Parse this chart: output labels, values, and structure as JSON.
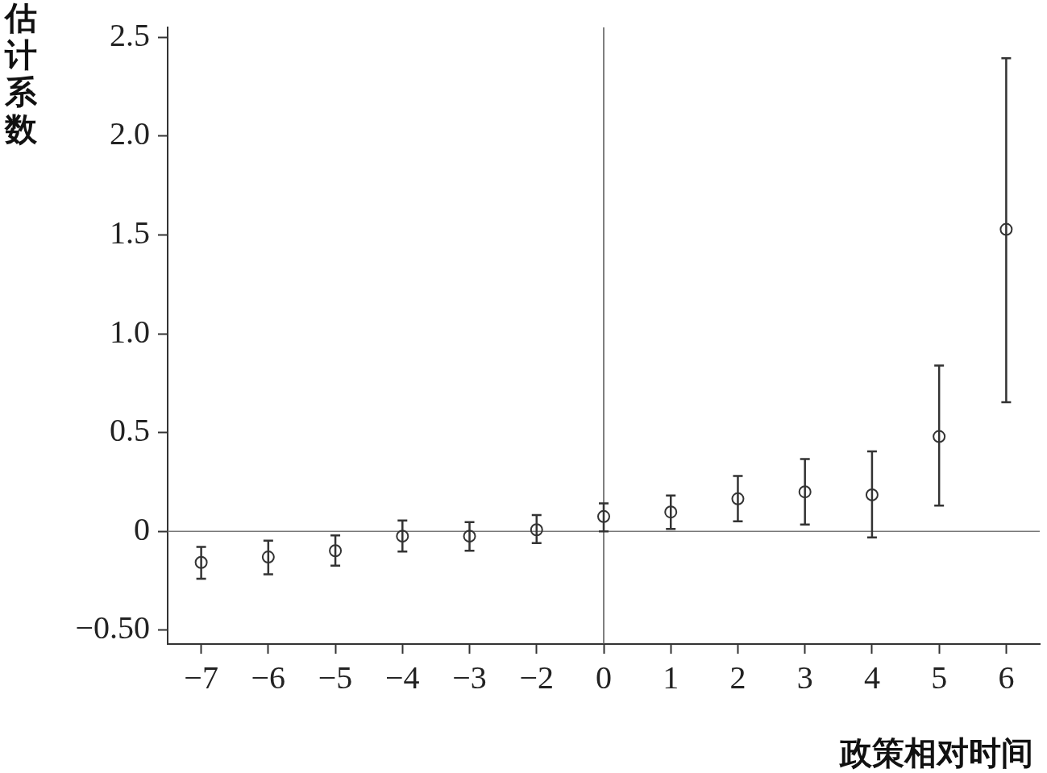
{
  "chart_data": {
    "type": "scatter",
    "xlabel": "政策相对时间",
    "ylabel": "估计系数",
    "categories": [
      "−7",
      "−6",
      "−5",
      "−4",
      "−3",
      "−2",
      "0",
      "1",
      "2",
      "3",
      "4",
      "5",
      "6"
    ],
    "series": [
      {
        "color": "#333333",
        "values": [
          -0.157,
          -0.13,
          -0.098,
          -0.024,
          -0.024,
          0.008,
          0.075,
          0.098,
          0.165,
          0.2,
          0.185,
          0.48,
          1.528
        ],
        "errors": [
          [
            -0.24,
            -0.079
          ],
          [
            -0.217,
            -0.047
          ],
          [
            -0.173,
            -0.02
          ],
          [
            -0.102,
            0.055
          ],
          [
            -0.098,
            0.047
          ],
          [
            -0.059,
            0.083
          ],
          [
            0,
            0.142
          ],
          [
            0.012,
            0.181
          ],
          [
            0.051,
            0.28
          ],
          [
            0.035,
            0.366
          ],
          [
            -0.031,
            0.405
          ],
          [
            0.13,
            0.839
          ],
          [
            0.654,
            2.394
          ]
        ]
      }
    ],
    "marker": "circle",
    "ylim": [
      -0.57,
      2.55
    ],
    "yticks": [
      {
        "value": -0.5,
        "label": "−0.50"
      },
      0,
      0.5,
      {
        "value": 1,
        "label": "1.0"
      },
      1.5,
      {
        "value": 2,
        "label": "2.0"
      },
      2.5
    ],
    "ref_lines": [
      {
        "axis": "y",
        "value": 0,
        "color": "#777777"
      },
      {
        "axis": "x",
        "value": "0",
        "color": "#555555"
      }
    ]
  }
}
